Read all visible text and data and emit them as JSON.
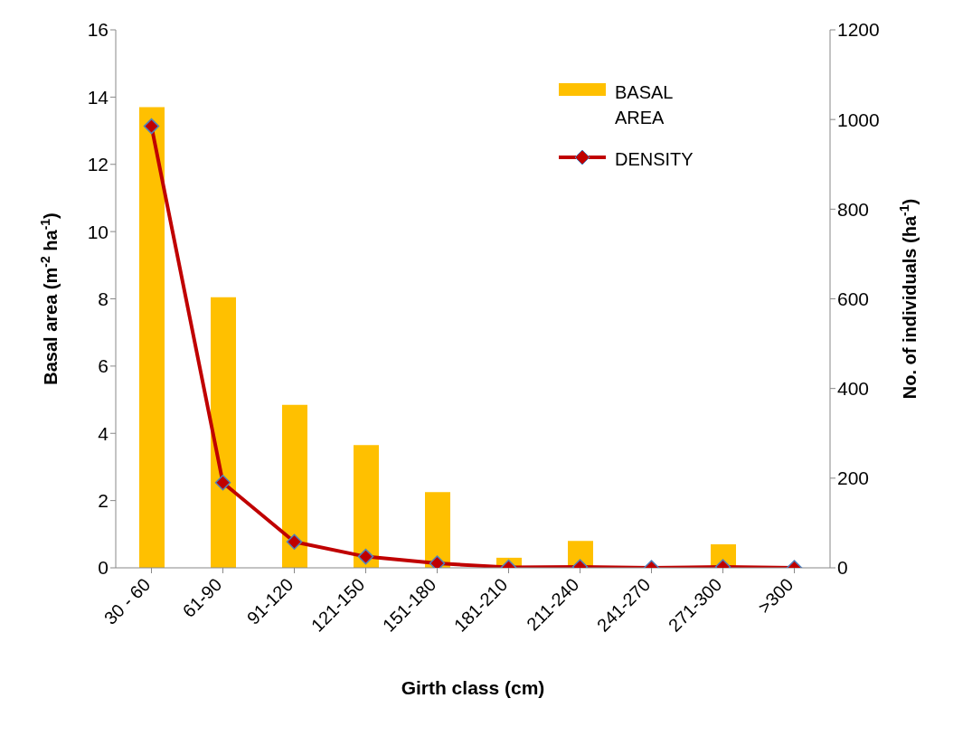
{
  "chart_data": {
    "type": "bar",
    "xlabel": "Girth class (cm)",
    "ylabel": "Basal area (m$^{-2}$ ha$^{-1}$)",
    "y2label": "No. of individuals (ha$^{-1}$)",
    "categories": [
      "30 - 60",
      "61-90",
      "91-120",
      "121-150",
      "151-180",
      "181-210",
      "211-240",
      "241-270",
      "271-300",
      ">300"
    ],
    "series": [
      {
        "name": "BASAL AREA",
        "color": "#ffc000",
        "values": [
          13.7,
          8.05,
          4.85,
          3.65,
          2.25,
          0.3,
          0.8,
          0,
          0.7,
          0
        ]
      },
      {
        "name": "DENSITY",
        "type": "line",
        "axis": "y2",
        "color": "#c00000",
        "values": [
          985,
          190,
          58,
          25,
          10,
          1,
          2,
          0,
          2,
          0
        ]
      }
    ],
    "ylim": [
      0,
      16
    ],
    "yticks": [
      0,
      2,
      4,
      6,
      8,
      10,
      12,
      14,
      16
    ],
    "y2lim": [
      0,
      1200
    ],
    "y2ticks": [
      0,
      200,
      400,
      600,
      800,
      1000,
      1200
    ],
    "grid": false,
    "legend": "top right",
    "marker": "diamond",
    "line_style": "solid"
  }
}
